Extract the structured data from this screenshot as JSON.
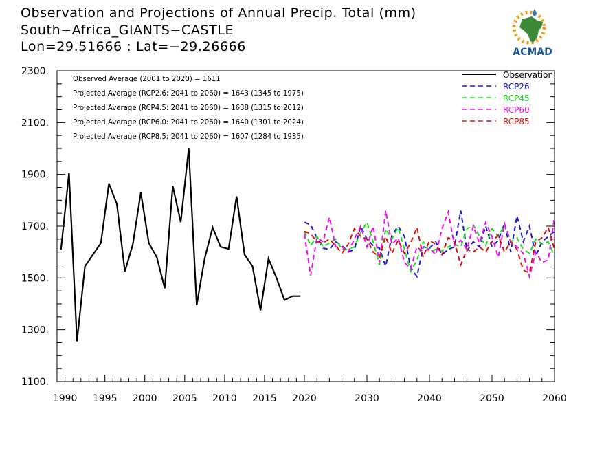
{
  "title": {
    "line1": "Observation and Projections of Annual Precip. Total (mm)",
    "line2": "South−Africa_GIANTS−CASTLE",
    "line3": "Lon=29.51666 : Lat=−29.26666"
  },
  "logo": {
    "text": "ACMAD",
    "colors": {
      "africa": "#3a8a3a",
      "sun": "#f0a020",
      "drop": "#2a7ab8",
      "text": "#1a5a9a"
    }
  },
  "chart_data": {
    "type": "line",
    "ylim": [
      1100,
      2300
    ],
    "xlim": [
      1989,
      2060
    ],
    "y_ticks": [
      {
        "value": 2300,
        "label": "2300."
      },
      {
        "value": 2100,
        "label": "2100."
      },
      {
        "value": 1900,
        "label": "1900."
      },
      {
        "value": 1700,
        "label": "1700."
      },
      {
        "value": 1500,
        "label": "1500."
      },
      {
        "value": 1300,
        "label": "1300."
      },
      {
        "value": 1100,
        "label": "1100."
      }
    ],
    "x_ticks_obs": [
      {
        "value": 1990,
        "label": "1990"
      },
      {
        "value": 1995,
        "label": "1995"
      },
      {
        "value": 2000,
        "label": "2000"
      },
      {
        "value": 2005,
        "label": "2005"
      },
      {
        "value": 2010,
        "label": "2010"
      },
      {
        "value": 2015,
        "label": "2015"
      },
      {
        "value": 2020,
        "label": "2020"
      }
    ],
    "x_ticks_proj": [
      {
        "value": 2030,
        "label": "2030"
      },
      {
        "value": 2040,
        "label": "2040"
      },
      {
        "value": 2050,
        "label": "2050"
      },
      {
        "value": 2060,
        "label": "2060"
      }
    ],
    "annotations": [
      "Observed Average (2001 to 2020) = 1611",
      "Projected Average (RCP2.6: 2041 to 2060) = 1643 (1345 to 1975)",
      "Projected Average (RCP4.5: 2041 to 2060) = 1638 (1315 to 2012)",
      "Projected Average (RCP6.0: 2041 to 2060) = 1640 (1301 to 2024)",
      "Projected Average (RCP8.5: 2041 to 2060) = 1607 (1284 to 1935)"
    ],
    "legend_position": "top-right",
    "observation": {
      "name": "Observation",
      "color": "#000000",
      "x": [
        1989,
        1990,
        1991,
        1992,
        1993,
        1994,
        1995,
        1996,
        1997,
        1998,
        1999,
        2000,
        2001,
        2002,
        2003,
        2004,
        2005,
        2006,
        2007,
        2008,
        2009,
        2010,
        2011,
        2012,
        2013,
        2014,
        2015,
        2016,
        2017,
        2018,
        2019
      ],
      "values": [
        1610,
        1905,
        1255,
        1545,
        1590,
        1635,
        1865,
        1785,
        1525,
        1630,
        1830,
        1635,
        1580,
        1460,
        1855,
        1715,
        2000,
        1395,
        1575,
        1695,
        1620,
        1612,
        1815,
        1590,
        1545,
        1375,
        1575,
        1500,
        1415,
        1430,
        1430
      ]
    },
    "projection_x_start": 2020,
    "projection_x_end": 2060,
    "series": [
      {
        "name": "RCP26",
        "color": "#1a1ad6",
        "values": [
          1715,
          1705,
          1655,
          1615,
          1610,
          1640,
          1625,
          1600,
          1610,
          1700,
          1650,
          1625,
          1615,
          1545,
          1665,
          1700,
          1660,
          1540,
          1505,
          1620,
          1615,
          1640,
          1590,
          1610,
          1620,
          1760,
          1605,
          1640,
          1620,
          1700,
          1620,
          1645,
          1710,
          1600,
          1740,
          1640,
          1700,
          1585,
          1640,
          1660,
          1680
        ]
      },
      {
        "name": "RCP45",
        "color": "#19e019",
        "values": [
          1680,
          1625,
          1660,
          1620,
          1635,
          1650,
          1610,
          1610,
          1620,
          1675,
          1715,
          1640,
          1550,
          1690,
          1650,
          1695,
          1610,
          1525,
          1570,
          1640,
          1600,
          1610,
          1605,
          1620,
          1630,
          1620,
          1690,
          1705,
          1660,
          1625,
          1690,
          1660,
          1705,
          1640,
          1655,
          1610,
          1595,
          1650,
          1630,
          1640,
          1585
        ]
      },
      {
        "name": "RCP60",
        "color": "#f010f0",
        "values": [
          1670,
          1510,
          1655,
          1640,
          1735,
          1620,
          1620,
          1600,
          1650,
          1700,
          1620,
          1700,
          1560,
          1760,
          1630,
          1655,
          1560,
          1535,
          1620,
          1600,
          1615,
          1590,
          1690,
          1755,
          1625,
          1645,
          1610,
          1700,
          1635,
          1715,
          1660,
          1580,
          1710,
          1640,
          1620,
          1595,
          1505,
          1600,
          1560,
          1570,
          1735
        ]
      },
      {
        "name": "RCP85",
        "color": "#e01010",
        "values": [
          1680,
          1670,
          1640,
          1635,
          1650,
          1625,
          1595,
          1630,
          1690,
          1660,
          1650,
          1600,
          1580,
          1660,
          1595,
          1645,
          1595,
          1635,
          1695,
          1580,
          1645,
          1630,
          1590,
          1655,
          1640,
          1550,
          1610,
          1600,
          1620,
          1600,
          1640,
          1665,
          1600,
          1640,
          1610,
          1530,
          1520,
          1640,
          1655,
          1695,
          1610
        ]
      }
    ]
  }
}
